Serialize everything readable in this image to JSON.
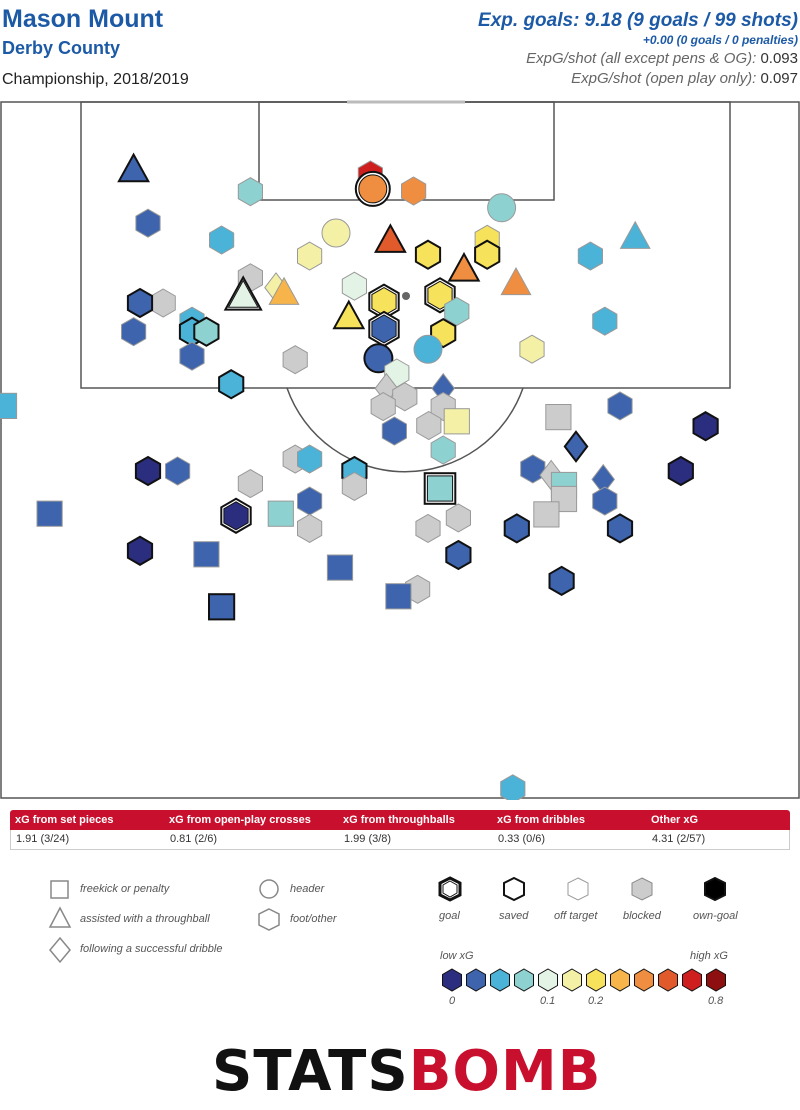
{
  "header": {
    "player": "Mason Mount",
    "team": "Derby County",
    "competition": "Championship, 2018/2019",
    "xg_total": "Exp. goals: 9.18 (9 goals / 99 shots)",
    "xg_penalties": "+0.00 (0 goals / 0 penalties)",
    "xg_per_shot_label": "ExpG/shot (all except pens & OG):",
    "xg_per_shot_value": "0.093",
    "xg_open_play_label": "ExpG/shot (open play only):",
    "xg_open_play_value": "0.097"
  },
  "summary_table": {
    "headers": [
      "xG from set pieces",
      "xG from open-play crosses",
      "xG from throughballs",
      "xG from dribbles",
      "Other xG"
    ],
    "values": [
      "1.91 (3/24)",
      "0.81 (2/6)",
      "1.99 (3/8)",
      "0.33 (0/6)",
      "4.31 (2/57)"
    ]
  },
  "legend": {
    "shape_labels": [
      "freekick or penalty",
      "assisted with a throughball",
      "following a successful dribble",
      "header",
      "foot/other"
    ],
    "outcome_labels": [
      "goal",
      "saved",
      "off target",
      "blocked",
      "own-goal"
    ],
    "scale_low": "low xG",
    "scale_high": "high xG",
    "scale_ticks": [
      "0",
      "0.1",
      "0.2",
      "0.8"
    ],
    "scale_colors": [
      "#2b2e7f",
      "#3d64ad",
      "#4cb3d8",
      "#8dd1d0",
      "#e3f4e6",
      "#f4f1a6",
      "#f7e25b",
      "#f6b44a",
      "#ef8e40",
      "#e05a2c",
      "#cf1e1e",
      "#8e0f0f"
    ]
  },
  "logo": {
    "part1": "STATS",
    "part2": "BOMB"
  },
  "chart_data": {
    "type": "scatter",
    "description_units": "pitch coordinates: x across width 0-100 (left to right), y 0-100 from goal line toward halfway",
    "shots": [
      {
        "x": 16.7,
        "y": 10.0,
        "shape": "tri",
        "outcome": "saved",
        "color": "#3d64ad"
      },
      {
        "x": 18.5,
        "y": 17.6,
        "shape": "hex",
        "outcome": "blocked",
        "color": "#3d64ad"
      },
      {
        "x": 31.3,
        "y": 13.1,
        "shape": "hex",
        "outcome": "off",
        "color": "#8dd1d0"
      },
      {
        "x": 27.7,
        "y": 20.0,
        "shape": "hex",
        "outcome": "off",
        "color": "#4cb3d8"
      },
      {
        "x": 46.3,
        "y": 10.7,
        "shape": "hex",
        "outcome": "off",
        "color": "#cf1e1e"
      },
      {
        "x": 46.6,
        "y": 12.7,
        "shape": "circ",
        "outcome": "goal",
        "color": "#ef8e40"
      },
      {
        "x": 51.7,
        "y": 13.0,
        "shape": "hex",
        "outcome": "off",
        "color": "#ef8e40"
      },
      {
        "x": 62.7,
        "y": 15.4,
        "shape": "circ",
        "outcome": "off",
        "color": "#8dd1d0"
      },
      {
        "x": 42.0,
        "y": 19.0,
        "shape": "circ",
        "outcome": "off",
        "color": "#f4f1a6"
      },
      {
        "x": 38.7,
        "y": 22.3,
        "shape": "hex",
        "outcome": "off",
        "color": "#f4f1a6"
      },
      {
        "x": 48.8,
        "y": 20.1,
        "shape": "tri",
        "outcome": "saved",
        "color": "#e05a2c"
      },
      {
        "x": 53.5,
        "y": 22.1,
        "shape": "hex",
        "outcome": "saved",
        "color": "#f7e25b"
      },
      {
        "x": 60.9,
        "y": 19.9,
        "shape": "hex",
        "outcome": "off",
        "color": "#f7e25b"
      },
      {
        "x": 60.9,
        "y": 22.1,
        "shape": "hex",
        "outcome": "saved",
        "color": "#f7e25b"
      },
      {
        "x": 58.0,
        "y": 24.2,
        "shape": "tri",
        "outcome": "saved",
        "color": "#ef8e40"
      },
      {
        "x": 64.5,
        "y": 26.2,
        "shape": "tri",
        "outcome": "off",
        "color": "#ef8e40"
      },
      {
        "x": 79.4,
        "y": 19.6,
        "shape": "tri",
        "outcome": "off",
        "color": "#4cb3d8"
      },
      {
        "x": 73.8,
        "y": 22.3,
        "shape": "hex",
        "outcome": "off",
        "color": "#4cb3d8"
      },
      {
        "x": 75.6,
        "y": 31.6,
        "shape": "hex",
        "outcome": "off",
        "color": "#4cb3d8"
      },
      {
        "x": 66.5,
        "y": 35.6,
        "shape": "hex",
        "outcome": "off",
        "color": "#f4f1a6"
      },
      {
        "x": 31.3,
        "y": 25.4,
        "shape": "hex",
        "outcome": "blocked",
        "color": "#cccccc"
      },
      {
        "x": 34.5,
        "y": 26.8,
        "shape": "dia",
        "outcome": "off",
        "color": "#f4f1a6"
      },
      {
        "x": 35.5,
        "y": 27.6,
        "shape": "tri",
        "outcome": "off",
        "color": "#f6b44a"
      },
      {
        "x": 30.4,
        "y": 28.0,
        "shape": "tri",
        "outcome": "goal",
        "color": "#e3f4e6"
      },
      {
        "x": 44.3,
        "y": 26.6,
        "shape": "hex",
        "outcome": "off",
        "color": "#e3f4e6"
      },
      {
        "x": 43.6,
        "y": 31.0,
        "shape": "tri",
        "outcome": "saved",
        "color": "#f7e25b"
      },
      {
        "x": 48.0,
        "y": 28.8,
        "shape": "hex",
        "outcome": "goal",
        "color": "#f7e25b"
      },
      {
        "x": 48.0,
        "y": 32.7,
        "shape": "hex",
        "outcome": "goal",
        "color": "#3d64ad"
      },
      {
        "x": 55.0,
        "y": 27.9,
        "shape": "hex",
        "outcome": "goal",
        "color": "#f7e25b"
      },
      {
        "x": 57.1,
        "y": 30.2,
        "shape": "hex",
        "outcome": "off",
        "color": "#8dd1d0"
      },
      {
        "x": 55.4,
        "y": 33.3,
        "shape": "hex",
        "outcome": "saved",
        "color": "#f7e25b"
      },
      {
        "x": 53.5,
        "y": 35.6,
        "shape": "circ",
        "outcome": "off",
        "color": "#4cb3d8"
      },
      {
        "x": 47.3,
        "y": 36.9,
        "shape": "circ",
        "outcome": "saved",
        "color": "#3d64ad"
      },
      {
        "x": 49.6,
        "y": 39.0,
        "shape": "hex",
        "outcome": "off",
        "color": "#e3f4e6"
      },
      {
        "x": 20.4,
        "y": 29.0,
        "shape": "hex",
        "outcome": "blocked",
        "color": "#cccccc"
      },
      {
        "x": 17.5,
        "y": 29.0,
        "shape": "hex",
        "outcome": "saved",
        "color": "#3d64ad"
      },
      {
        "x": 24.0,
        "y": 31.6,
        "shape": "hex",
        "outcome": "off",
        "color": "#4cb3d8"
      },
      {
        "x": 24.0,
        "y": 33.1,
        "shape": "hex",
        "outcome": "saved",
        "color": "#4cb3d8"
      },
      {
        "x": 25.8,
        "y": 33.1,
        "shape": "hex",
        "outcome": "saved",
        "color": "#8dd1d0"
      },
      {
        "x": 16.7,
        "y": 33.1,
        "shape": "hex",
        "outcome": "off",
        "color": "#3d64ad"
      },
      {
        "x": 24.0,
        "y": 36.6,
        "shape": "hex",
        "outcome": "off",
        "color": "#3d64ad"
      },
      {
        "x": 28.9,
        "y": 40.6,
        "shape": "hex",
        "outcome": "saved",
        "color": "#4cb3d8"
      },
      {
        "x": 36.9,
        "y": 37.1,
        "shape": "hex",
        "outcome": "blocked",
        "color": "#cccccc"
      },
      {
        "x": 0.5,
        "y": 43.7,
        "shape": "sq",
        "outcome": "off",
        "color": "#4cb3d8"
      },
      {
        "x": 48.3,
        "y": 41.2,
        "shape": "dia",
        "outcome": "blocked",
        "color": "#cccccc"
      },
      {
        "x": 50.6,
        "y": 42.4,
        "shape": "hex",
        "outcome": "blocked",
        "color": "#cccccc"
      },
      {
        "x": 47.9,
        "y": 43.8,
        "shape": "hex",
        "outcome": "blocked",
        "color": "#cccccc"
      },
      {
        "x": 55.4,
        "y": 41.2,
        "shape": "dia",
        "outcome": "off",
        "color": "#3d64ad"
      },
      {
        "x": 55.4,
        "y": 43.8,
        "shape": "hex",
        "outcome": "blocked",
        "color": "#cccccc"
      },
      {
        "x": 57.1,
        "y": 45.9,
        "shape": "sq",
        "outcome": "off",
        "color": "#f4f1a6"
      },
      {
        "x": 53.6,
        "y": 46.5,
        "shape": "hex",
        "outcome": "blocked",
        "color": "#cccccc"
      },
      {
        "x": 49.3,
        "y": 47.3,
        "shape": "hex",
        "outcome": "off",
        "color": "#3d64ad"
      },
      {
        "x": 55.4,
        "y": 50.0,
        "shape": "hex",
        "outcome": "off",
        "color": "#8dd1d0"
      },
      {
        "x": 69.8,
        "y": 45.3,
        "shape": "sq",
        "outcome": "blocked",
        "color": "#cccccc"
      },
      {
        "x": 77.5,
        "y": 43.7,
        "shape": "hex",
        "outcome": "off",
        "color": "#3d64ad"
      },
      {
        "x": 88.2,
        "y": 46.6,
        "shape": "hex",
        "outcome": "saved",
        "color": "#2b2e7f"
      },
      {
        "x": 72.0,
        "y": 49.5,
        "shape": "dia",
        "outcome": "saved",
        "color": "#3d64ad"
      },
      {
        "x": 85.1,
        "y": 53.0,
        "shape": "hex",
        "outcome": "saved",
        "color": "#2b2e7f"
      },
      {
        "x": 66.6,
        "y": 52.7,
        "shape": "hex",
        "outcome": "off",
        "color": "#3d64ad"
      },
      {
        "x": 68.9,
        "y": 53.6,
        "shape": "dia",
        "outcome": "blocked",
        "color": "#cccccc"
      },
      {
        "x": 70.5,
        "y": 55.0,
        "shape": "sq",
        "outcome": "off",
        "color": "#8dd1d0"
      },
      {
        "x": 70.5,
        "y": 57.0,
        "shape": "sq",
        "outcome": "blocked",
        "color": "#cccccc"
      },
      {
        "x": 68.3,
        "y": 59.2,
        "shape": "sq",
        "outcome": "blocked",
        "color": "#cccccc"
      },
      {
        "x": 75.4,
        "y": 54.2,
        "shape": "dia",
        "outcome": "off",
        "color": "#3d64ad"
      },
      {
        "x": 75.6,
        "y": 57.3,
        "shape": "hex",
        "outcome": "off",
        "color": "#3d64ad"
      },
      {
        "x": 77.5,
        "y": 61.2,
        "shape": "hex",
        "outcome": "saved",
        "color": "#3d64ad"
      },
      {
        "x": 64.6,
        "y": 61.2,
        "shape": "hex",
        "outcome": "saved",
        "color": "#3d64ad"
      },
      {
        "x": 57.3,
        "y": 59.7,
        "shape": "hex",
        "outcome": "blocked",
        "color": "#cccccc"
      },
      {
        "x": 53.5,
        "y": 61.2,
        "shape": "hex",
        "outcome": "blocked",
        "color": "#cccccc"
      },
      {
        "x": 55.0,
        "y": 55.5,
        "shape": "sq",
        "outcome": "goal",
        "color": "#8dd1d0"
      },
      {
        "x": 57.3,
        "y": 65.0,
        "shape": "hex",
        "outcome": "saved",
        "color": "#3d64ad"
      },
      {
        "x": 70.2,
        "y": 68.7,
        "shape": "hex",
        "outcome": "saved",
        "color": "#3d64ad"
      },
      {
        "x": 52.2,
        "y": 69.9,
        "shape": "hex",
        "outcome": "blocked",
        "color": "#cccccc"
      },
      {
        "x": 49.8,
        "y": 70.9,
        "shape": "sq",
        "outcome": "off",
        "color": "#3d64ad"
      },
      {
        "x": 36.9,
        "y": 51.3,
        "shape": "hex",
        "outcome": "blocked",
        "color": "#cccccc"
      },
      {
        "x": 38.7,
        "y": 51.3,
        "shape": "hex",
        "outcome": "off",
        "color": "#4cb3d8"
      },
      {
        "x": 44.3,
        "y": 53.0,
        "shape": "hex",
        "outcome": "saved",
        "color": "#4cb3d8"
      },
      {
        "x": 44.3,
        "y": 55.2,
        "shape": "hex",
        "outcome": "blocked",
        "color": "#cccccc"
      },
      {
        "x": 31.3,
        "y": 54.8,
        "shape": "hex",
        "outcome": "blocked",
        "color": "#cccccc"
      },
      {
        "x": 38.7,
        "y": 57.3,
        "shape": "hex",
        "outcome": "off",
        "color": "#3d64ad"
      },
      {
        "x": 35.1,
        "y": 59.1,
        "shape": "sq",
        "outcome": "off",
        "color": "#8dd1d0"
      },
      {
        "x": 29.5,
        "y": 59.4,
        "shape": "hex",
        "outcome": "goal",
        "color": "#2b2e7f"
      },
      {
        "x": 38.7,
        "y": 61.2,
        "shape": "hex",
        "outcome": "blocked",
        "color": "#cccccc"
      },
      {
        "x": 18.5,
        "y": 53.0,
        "shape": "hex",
        "outcome": "saved",
        "color": "#2b2e7f"
      },
      {
        "x": 22.2,
        "y": 53.0,
        "shape": "hex",
        "outcome": "off",
        "color": "#3d64ad"
      },
      {
        "x": 6.2,
        "y": 59.1,
        "shape": "sq",
        "outcome": "off",
        "color": "#3d64ad"
      },
      {
        "x": 17.5,
        "y": 64.4,
        "shape": "hex",
        "outcome": "saved",
        "color": "#2b2e7f"
      },
      {
        "x": 25.8,
        "y": 64.9,
        "shape": "sq",
        "outcome": "off",
        "color": "#3d64ad"
      },
      {
        "x": 42.5,
        "y": 66.8,
        "shape": "sq",
        "outcome": "off",
        "color": "#3d64ad"
      },
      {
        "x": 27.7,
        "y": 72.4,
        "shape": "sq",
        "outcome": "saved",
        "color": "#3d64ad"
      },
      {
        "x": 64.1,
        "y": 98.4,
        "shape": "hex",
        "outcome": "off",
        "color": "#4cb3d8"
      }
    ]
  }
}
